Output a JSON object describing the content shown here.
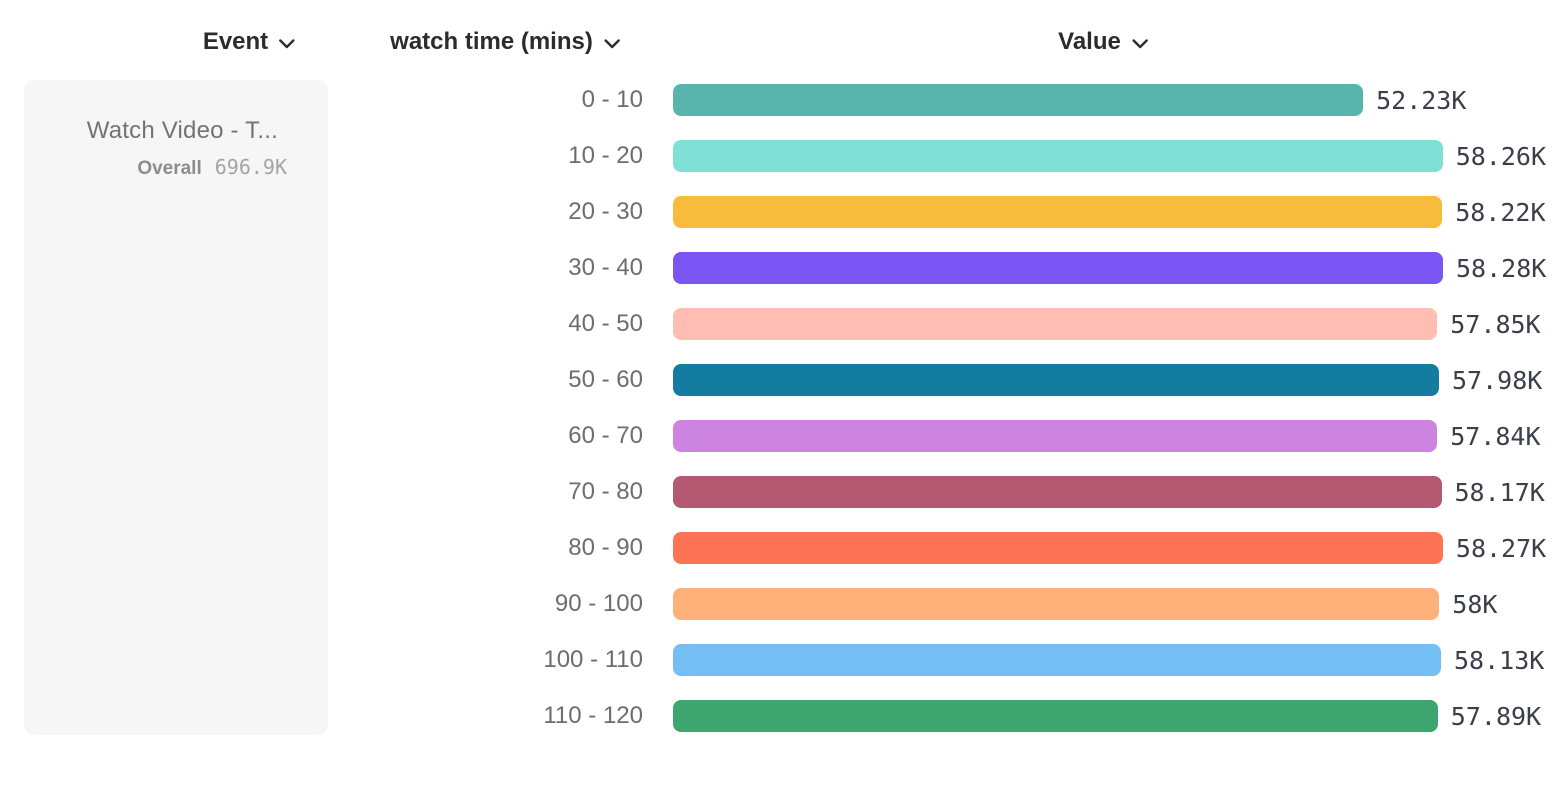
{
  "header": {
    "columns": [
      {
        "label": "Event"
      },
      {
        "label": "watch time (mins)"
      },
      {
        "label": "Value"
      }
    ]
  },
  "event_card": {
    "title": "Watch Video - T...",
    "overall_label": "Overall",
    "overall_value": "696.9K"
  },
  "chart_data": {
    "type": "bar",
    "orientation": "horizontal",
    "title": "",
    "xlabel": "watch time (mins)",
    "ylabel": "Value",
    "categories": [
      "0 - 10",
      "10 - 20",
      "20 - 30",
      "30 - 40",
      "40 - 50",
      "50 - 60",
      "60 - 70",
      "70 - 80",
      "80 - 90",
      "90 - 100",
      "100 - 110",
      "110 - 120"
    ],
    "values_k": [
      52.23,
      58.26,
      58.22,
      58.28,
      57.85,
      57.98,
      57.84,
      58.17,
      58.27,
      58.0,
      58.13,
      57.89
    ],
    "value_labels": [
      "52.23K",
      "58.26K",
      "58.22K",
      "58.28K",
      "57.85K",
      "57.98K",
      "57.84K",
      "58.17K",
      "58.27K",
      "58K",
      "58.13K",
      "57.89K"
    ],
    "bar_colors": [
      "#58B4AC",
      "#80E0D5",
      "#F7BB3D",
      "#7A55F4",
      "#FFBDB3",
      "#147BA1",
      "#CC84E0",
      "#B35A72",
      "#FC7355",
      "#FEB178",
      "#75BEF3",
      "#3EA56E"
    ],
    "xlim_k": [
      0,
      58.28
    ],
    "grid": false,
    "legend_position": "none"
  },
  "colors": {
    "header_text": "#2c2c2e",
    "category_text": "#6c6c71",
    "value_text": "#3a3f49",
    "card_background": "#f6f6f6"
  }
}
